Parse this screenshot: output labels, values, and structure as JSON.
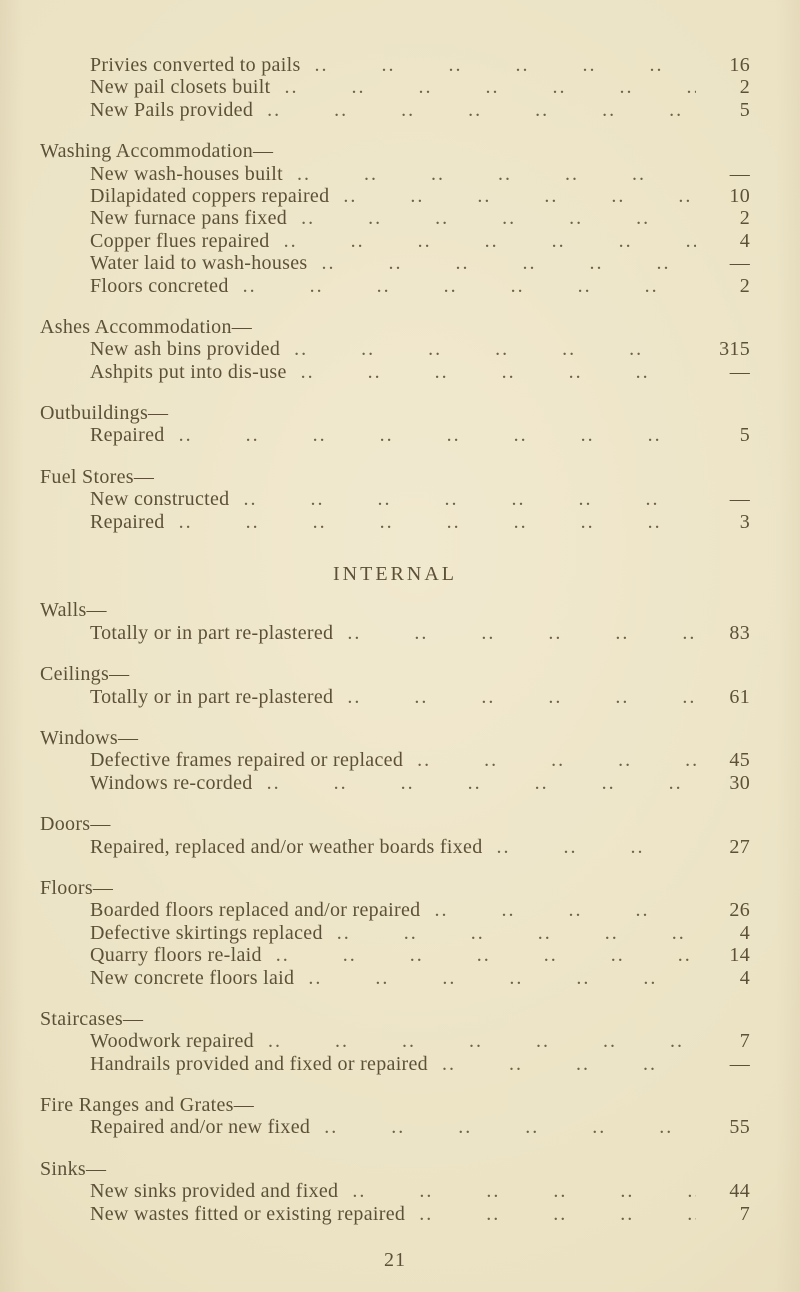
{
  "report": {
    "paper_color": "#ebe2c3",
    "ink_color": "#5c5138",
    "internal_heading": "INTERNAL",
    "page_number": "21",
    "sections": [
      {
        "heading": "",
        "items": [
          {
            "label": "Privies converted to pails",
            "value": "16"
          },
          {
            "label": "New pail closets built",
            "value": "2"
          },
          {
            "label": "New Pails provided",
            "value": "5"
          }
        ]
      },
      {
        "heading": "Washing Accommodation—",
        "items": [
          {
            "label": "New wash-houses built",
            "value": "—"
          },
          {
            "label": "Dilapidated coppers repaired",
            "value": "10"
          },
          {
            "label": "New furnace pans fixed",
            "value": "2"
          },
          {
            "label": "Copper flues repaired",
            "value": "4"
          },
          {
            "label": "Water laid to wash-houses",
            "value": "—"
          },
          {
            "label": "Floors concreted",
            "value": "2"
          }
        ]
      },
      {
        "heading": "Ashes Accommodation—",
        "items": [
          {
            "label": "New ash bins provided",
            "value": "315"
          },
          {
            "label": "Ashpits put into dis-use",
            "value": "—"
          }
        ]
      },
      {
        "heading": "Outbuildings—",
        "items": [
          {
            "label": "Repaired",
            "value": "5"
          }
        ]
      },
      {
        "heading": "Fuel Stores—",
        "items": [
          {
            "label": "New constructed",
            "value": "—"
          },
          {
            "label": "Repaired",
            "value": "3"
          }
        ]
      },
      {
        "heading": "Walls—",
        "items": [
          {
            "label": "Totally or in part re-plastered",
            "value": "83"
          }
        ]
      },
      {
        "heading": "Ceilings—",
        "items": [
          {
            "label": "Totally or in part re-plastered",
            "value": "61"
          }
        ]
      },
      {
        "heading": "Windows—",
        "items": [
          {
            "label": "Defective frames repaired or replaced",
            "value": "45"
          },
          {
            "label": "Windows re-corded",
            "value": "30"
          }
        ]
      },
      {
        "heading": "Doors—",
        "items": [
          {
            "label": "Repaired, replaced and/or weather boards fixed",
            "value": "27"
          }
        ]
      },
      {
        "heading": "Floors—",
        "items": [
          {
            "label": "Boarded floors replaced and/or repaired",
            "value": "26"
          },
          {
            "label": "Defective skirtings replaced",
            "value": "4"
          },
          {
            "label": "Quarry floors re-laid",
            "value": "14"
          },
          {
            "label": "New concrete floors laid",
            "value": "4"
          }
        ]
      },
      {
        "heading": "Staircases—",
        "items": [
          {
            "label": "Woodwork repaired",
            "value": "7"
          },
          {
            "label": "Handrails provided and fixed or repaired",
            "value": "—"
          }
        ]
      },
      {
        "heading": "Fire Ranges and Grates—",
        "items": [
          {
            "label": "Repaired and/or new fixed",
            "value": "55"
          }
        ]
      },
      {
        "heading": "Sinks—",
        "items": [
          {
            "label": "New sinks provided and fixed",
            "value": "44"
          },
          {
            "label": "New wastes fitted or existing repaired",
            "value": "7"
          }
        ]
      }
    ]
  }
}
